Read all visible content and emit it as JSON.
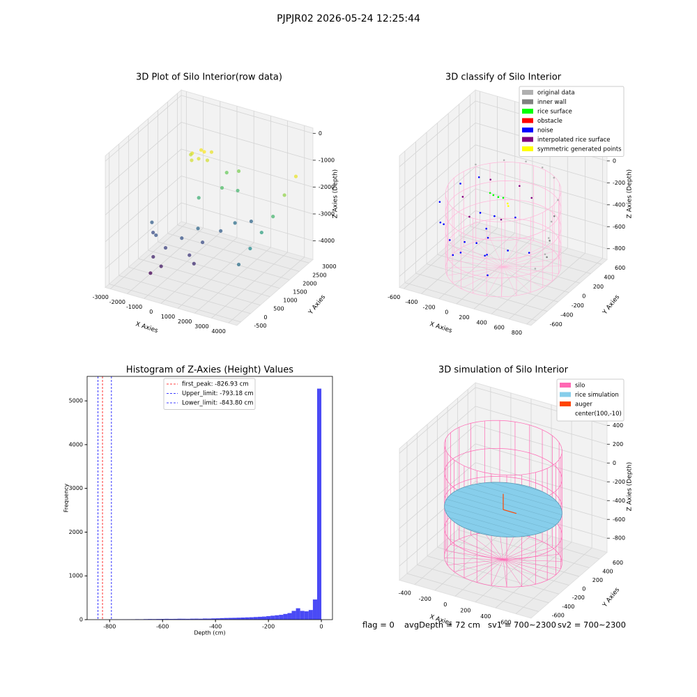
{
  "title": "PJPJR02 2026-05-24 12:25:44",
  "footer": [
    "flag = 0",
    "avgDepth = 72 cm",
    "sv1 = 700~2300",
    "sv2 = 700~2300"
  ],
  "chart_data": [
    {
      "type": "scatter3d",
      "title": "3D Plot of Silo Interior(row data)",
      "cmap": "viridis",
      "xlabel": "X Axies",
      "ylabel": "Y Axies",
      "zlabel": "Z Axies (Depth)",
      "xlim": [
        -3300,
        4500
      ],
      "xticks": [
        -3000,
        -2000,
        -1000,
        0,
        1000,
        2000,
        3000,
        4000
      ],
      "ylim": [
        -700,
        3200
      ],
      "yticks": [
        -500,
        0,
        500,
        1000,
        1500,
        2000,
        2500,
        3000
      ],
      "zlim": [
        -4700,
        200
      ],
      "zticks": [
        -4000,
        -3000,
        -2000,
        -1000,
        0
      ],
      "x": [
        -1500,
        -1200,
        -900,
        -700,
        -1300,
        -1000,
        -600,
        -1700,
        200,
        800,
        500,
        -300,
        1200,
        -2500,
        -2200,
        -1800,
        -1000,
        -500,
        0,
        500,
        1000,
        1500,
        -1500,
        -800,
        -1200,
        300,
        2000,
        800,
        3800,
        3900,
        4000,
        4100,
        4200,
        4300
      ],
      "y": [
        2200,
        2400,
        2300,
        2500,
        2000,
        2100,
        2200,
        2300,
        2500,
        2600,
        2000,
        1500,
        2200,
        1000,
        800,
        600,
        400,
        800,
        1200,
        1000,
        1500,
        1800,
        200,
        0,
        -200,
        500,
        2200,
        300,
        0,
        500,
        1000,
        1500,
        2000,
        2500
      ],
      "z": [
        -1200,
        -1150,
        -1100,
        -1200,
        -1300,
        -1250,
        -1300,
        -1350,
        -1800,
        -1700,
        -2000,
        -2200,
        -2100,
        -3200,
        -3400,
        -3300,
        -3500,
        -3300,
        -3100,
        -3400,
        -3200,
        -3000,
        -3800,
        -3900,
        -4100,
        -3600,
        -3100,
        -3700,
        -3000,
        -2700,
        -2400,
        -2100,
        -1600,
        -1200
      ]
    },
    {
      "type": "scatter3d",
      "title": "3D classify of Silo Interior",
      "legend": "upper right",
      "xlabel": "X Axies",
      "ylabel": "Y Axies",
      "zlabel": "Z Axies (Depth)",
      "xlim": [
        -650,
        850
      ],
      "xticks": [
        -600,
        -400,
        -200,
        0,
        200,
        400,
        600,
        800
      ],
      "ylim": [
        -700,
        700
      ],
      "yticks": [
        -600,
        -400,
        -200,
        0,
        200,
        400,
        600
      ],
      "zlim": [
        -900,
        300
      ],
      "zticks": [
        -800,
        -600,
        -400,
        -200,
        0,
        200
      ],
      "silo_color": "#ffb6d9",
      "series": [
        {
          "name": "original data",
          "color": "#b0b0b0",
          "x": [
            -400,
            -200,
            0,
            200,
            400,
            600,
            650,
            680,
            700,
            650
          ],
          "y": [
            300,
            500,
            580,
            560,
            450,
            200,
            0,
            -100,
            -200,
            -300
          ],
          "z": [
            -150,
            -150,
            -150,
            -150,
            -150,
            -200,
            -300,
            -400,
            -500,
            -600
          ]
        },
        {
          "name": "inner wall",
          "color": "#808080",
          "x": [
            620,
            660,
            690
          ],
          "y": [
            100,
            -50,
            -150
          ],
          "z": [
            -300,
            -450,
            -550
          ]
        },
        {
          "name": "rice surface",
          "color": "#00ff00",
          "x": [
            -50,
            0,
            50,
            100
          ],
          "y": [
            0,
            -20,
            -10,
            0
          ],
          "z": [
            -200,
            -200,
            -210,
            -210
          ]
        },
        {
          "name": "obstacle",
          "color": "#ff0000",
          "x": [],
          "y": [],
          "z": []
        },
        {
          "name": "noise",
          "color": "#0000ff",
          "x": [
            -500,
            -400,
            -300,
            -200,
            0,
            200,
            400,
            550,
            -450,
            -300,
            -100,
            0,
            50,
            -50,
            0,
            100,
            300,
            -200,
            200,
            -350
          ],
          "y": [
            -200,
            -350,
            -450,
            -500,
            -550,
            -500,
            -400,
            -250,
            100,
            200,
            -100,
            -150,
            -200,
            -250,
            0,
            -300,
            -100,
            -300,
            -450,
            -200
          ],
          "z": [
            -300,
            -400,
            -350,
            -450,
            -400,
            -500,
            -450,
            -500,
            -250,
            -200,
            -350,
            -450,
            -500,
            -550,
            -400,
            -600,
            -300,
            -650,
            -700,
            -750
          ]
        },
        {
          "name": "interpolated rice surface",
          "color": "#800080",
          "x": [
            -300,
            -100,
            200,
            300,
            -200,
            100
          ],
          "y": [
            -100,
            -300,
            -200,
            200,
            250,
            300
          ],
          "z": [
            -250,
            -300,
            -300,
            -250,
            -220,
            -230
          ]
        },
        {
          "name": "symmetric generated points",
          "color": "#ffff00",
          "x": [
            150,
            170
          ],
          "y": [
            0,
            -20
          ],
          "z": [
            -250,
            -260
          ]
        }
      ]
    },
    {
      "type": "histogram",
      "title": "Histogram of Z-Axies (Height) Values",
      "legend": "upper center",
      "xlabel": "Depth (cm)",
      "ylabel": "Frequency",
      "color": "#4a4af5",
      "xlim": [
        -885,
        42
      ],
      "xticks": [
        -800,
        -600,
        -400,
        -200,
        0
      ],
      "ylim": [
        0,
        5560
      ],
      "yticks": [
        0,
        1000,
        2000,
        3000,
        4000,
        5000
      ],
      "bins": [
        -800,
        -784,
        -768,
        -752,
        -736,
        -720,
        -704,
        -688,
        -672,
        -656,
        -640,
        -624,
        -608,
        -592,
        -576,
        -560,
        -544,
        -528,
        -512,
        -496,
        -480,
        -464,
        -448,
        -432,
        -416,
        -400,
        -384,
        -368,
        -352,
        -336,
        -320,
        -304,
        -288,
        -272,
        -256,
        -240,
        -224,
        -208,
        -192,
        -176,
        -160,
        -144,
        -128,
        -112,
        -96,
        -80,
        -64,
        -48,
        -32,
        -16,
        0
      ],
      "values": [
        5,
        6,
        5,
        6,
        7,
        8,
        10,
        9,
        12,
        14,
        13,
        15,
        16,
        18,
        16,
        17,
        20,
        19,
        18,
        21,
        22,
        20,
        25,
        24,
        28,
        30,
        35,
        38,
        40,
        42,
        45,
        48,
        52,
        55,
        60,
        65,
        70,
        80,
        90,
        100,
        110,
        130,
        150,
        200,
        260,
        200,
        190,
        220,
        460,
        5280
      ],
      "vlines": [
        {
          "name": "first_peak: -826.93 cm",
          "value": -826.93,
          "color": "#ff0000"
        },
        {
          "name": "Upper_limit: -793.18 cm",
          "value": -793.18,
          "color": "#0000ff"
        },
        {
          "name": "Lower_limit: -843.80 cm",
          "value": -843.8,
          "color": "#0000ff"
        }
      ]
    },
    {
      "type": "surface3d",
      "title": "3D simulation of Silo Interior",
      "legend": "upper right",
      "xlabel": "X Axies",
      "ylabel": "Y Axies",
      "zlabel": "Z Axies (Depth)",
      "xlim": [
        -550,
        750
      ],
      "xticks": [
        -400,
        -200,
        0,
        200,
        400,
        600
      ],
      "ylim": [
        -750,
        750
      ],
      "yticks": [
        -600,
        -400,
        -200,
        0,
        200,
        400,
        600
      ],
      "zlim": [
        -950,
        450
      ],
      "zticks": [
        -800,
        -600,
        -400,
        -200,
        0,
        200,
        400
      ],
      "series": [
        {
          "name": "silo",
          "color": "#ff69b4"
        },
        {
          "name": "rice simulation",
          "color": "#87ceeb"
        },
        {
          "name": "auger",
          "color": "#ff4500"
        },
        {
          "name": "center(100,-10)"
        }
      ]
    }
  ]
}
